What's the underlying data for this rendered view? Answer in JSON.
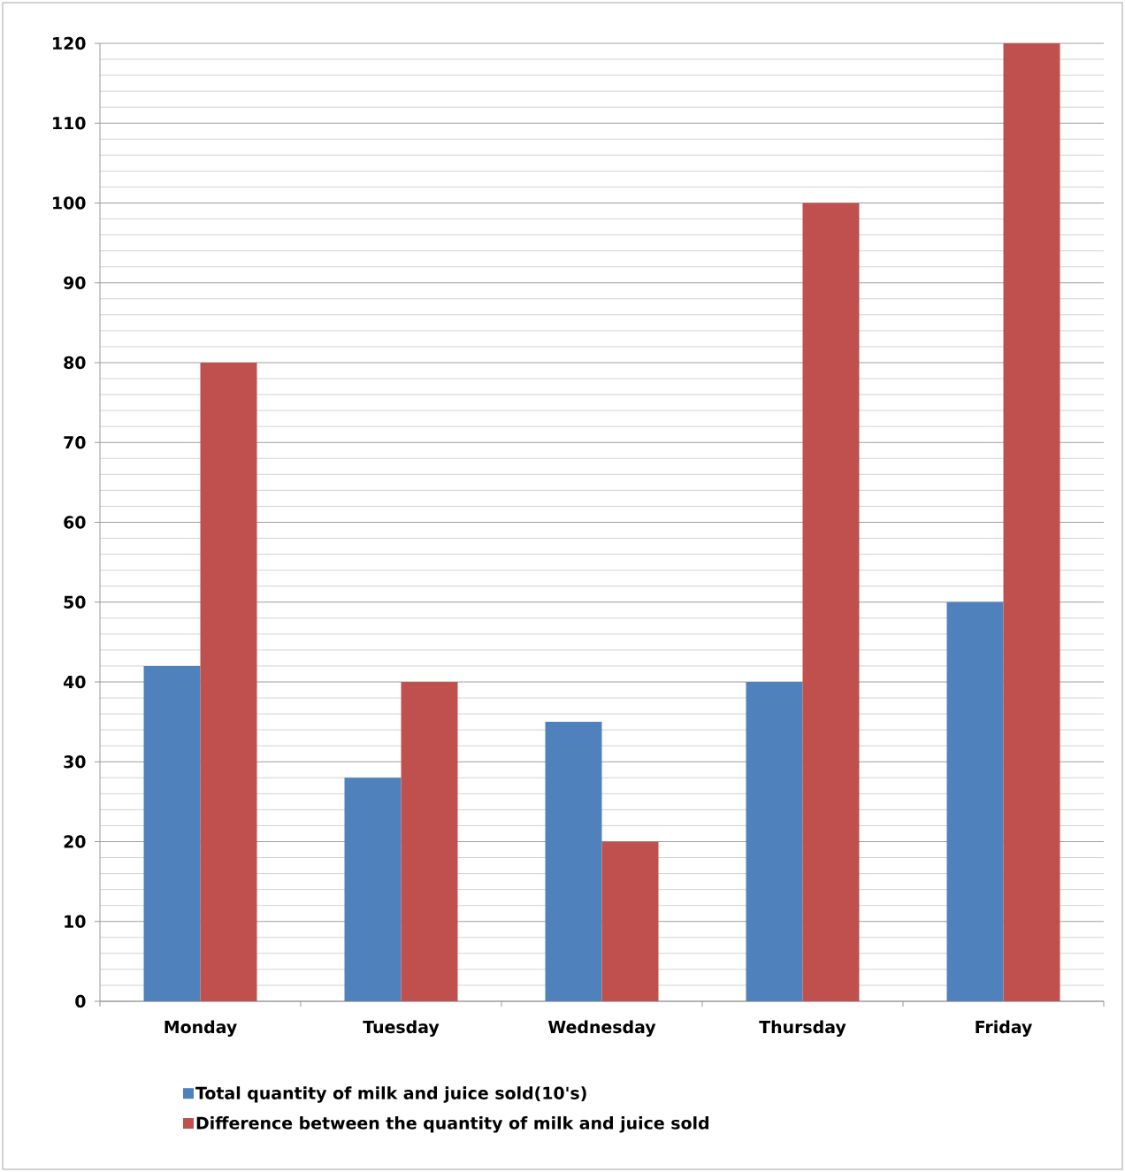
{
  "chart_data": {
    "type": "bar",
    "categories": [
      "Monday",
      "Tuesday",
      "Wednesday",
      "Thursday",
      "Friday"
    ],
    "series": [
      {
        "name": "Total quantity of milk and juice sold(10's)",
        "color": "#4f81bd",
        "values": [
          42,
          28,
          35,
          40,
          50
        ]
      },
      {
        "name": "Difference between the quantity of milk and juice sold",
        "color": "#c0504d",
        "values": [
          80,
          40,
          20,
          100,
          120
        ]
      }
    ],
    "ylim": [
      0,
      120
    ],
    "yticks": [
      0,
      10,
      20,
      30,
      40,
      50,
      60,
      70,
      80,
      90,
      100,
      110,
      120
    ],
    "grid": "y",
    "legend": "bottom"
  }
}
